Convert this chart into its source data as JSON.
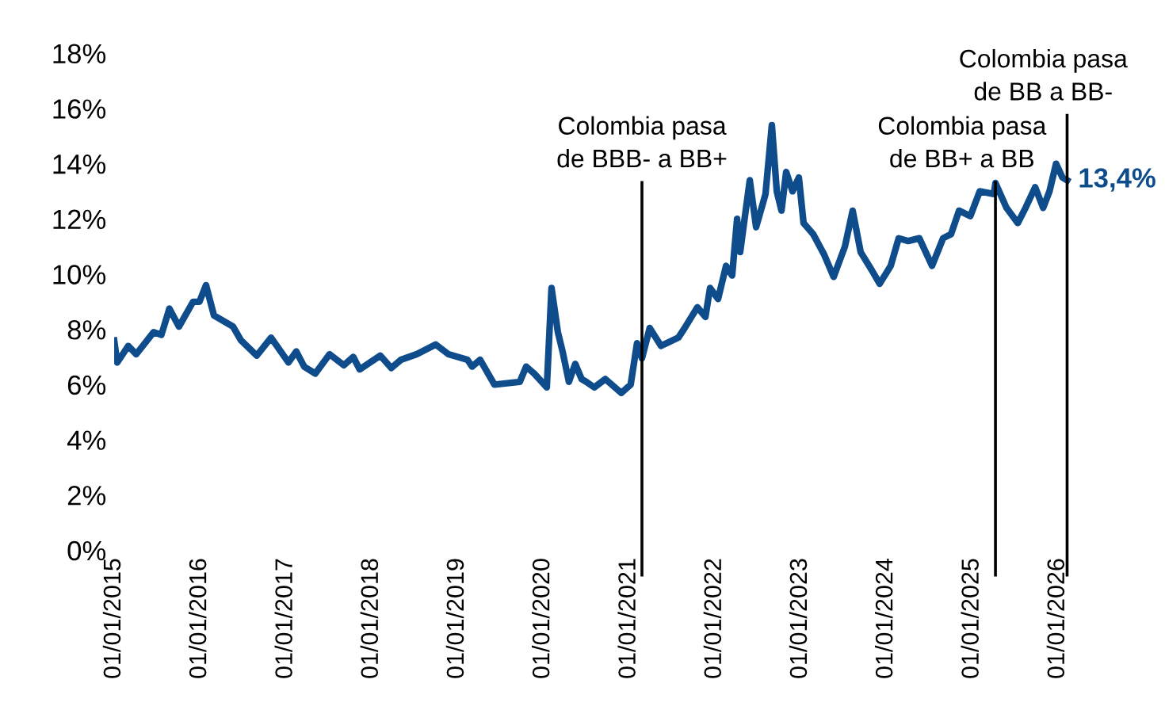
{
  "chart_data": {
    "type": "line",
    "x": [
      "2015-01-01",
      "2015-01-14",
      "2015-03-02",
      "2015-04-05",
      "2015-06-18",
      "2015-07-21",
      "2015-08-24",
      "2015-10-04",
      "2015-12-03",
      "2015-12-30",
      "2016-01-27",
      "2016-03-01",
      "2016-05-21",
      "2016-06-24",
      "2016-08-30",
      "2016-10-30",
      "2017-01-12",
      "2017-02-14",
      "2017-03-20",
      "2017-05-06",
      "2017-07-06",
      "2017-09-05",
      "2017-10-15",
      "2017-11-11",
      "2018-02-07",
      "2018-03-26",
      "2018-05-06",
      "2018-07-12",
      "2018-10-01",
      "2018-11-24",
      "2019-02-13",
      "2019-03-05",
      "2019-04-08",
      "2019-06-08",
      "2019-09-24",
      "2019-10-21",
      "2019-11-24",
      "2020-01-17",
      "2020-02-06",
      "2020-03-04",
      "2020-03-24",
      "2020-04-20",
      "2020-05-17",
      "2020-06-13",
      "2020-07-03",
      "2020-08-06",
      "2020-09-22",
      "2020-11-29",
      "2021-01-08",
      "2021-02-04",
      "2021-02-25",
      "2021-03-30",
      "2021-05-17",
      "2021-07-30",
      "2021-08-26",
      "2021-10-19",
      "2021-11-22",
      "2021-12-12",
      "2022-01-15",
      "2022-02-18",
      "2022-03-16",
      "2022-04-06",
      "2022-04-19",
      "2022-05-30",
      "2022-06-26",
      "2022-08-05",
      "2022-09-01",
      "2022-09-22",
      "2022-10-12",
      "2022-11-01",
      "2022-11-28",
      "2022-12-25",
      "2023-01-14",
      "2023-02-24",
      "2023-04-12",
      "2023-05-22",
      "2023-07-09",
      "2023-08-11",
      "2023-09-14",
      "2023-10-31",
      "2023-12-04",
      "2024-01-20",
      "2024-02-23",
      "2024-04-04",
      "2024-05-21",
      "2024-07-14",
      "2024-08-30",
      "2024-10-03",
      "2024-11-06",
      "2024-12-24",
      "2025-02-02",
      "2025-04-03",
      "2025-04-10",
      "2025-05-27",
      "2025-07-14",
      "2025-08-16",
      "2025-09-26",
      "2025-10-30",
      "2025-11-26",
      "2025-12-24",
      "2026-01-20",
      "2026-02-09"
    ],
    "series": [
      {
        "color": "#0f4c8c",
        "values": [
          7.6,
          6.8,
          7.4,
          7.1,
          7.9,
          7.8,
          8.75,
          8.1,
          9.0,
          9.0,
          9.6,
          8.5,
          8.1,
          7.6,
          7.05,
          7.7,
          6.8,
          7.2,
          6.65,
          6.4,
          7.1,
          6.7,
          7.0,
          6.55,
          7.05,
          6.6,
          6.9,
          7.1,
          7.45,
          7.1,
          6.9,
          6.65,
          6.9,
          6.0,
          6.1,
          6.65,
          6.4,
          5.9,
          9.5,
          7.9,
          7.2,
          6.1,
          6.75,
          6.2,
          6.1,
          5.9,
          6.2,
          5.7,
          6.0,
          7.5,
          6.95,
          8.05,
          7.4,
          7.7,
          8.05,
          8.8,
          8.45,
          9.5,
          9.1,
          10.3,
          9.95,
          12.0,
          10.8,
          13.4,
          11.7,
          12.9,
          15.4,
          13.0,
          12.3,
          13.7,
          13.0,
          13.5,
          11.85,
          11.45,
          10.7,
          9.9,
          11.0,
          12.3,
          10.8,
          10.15,
          9.65,
          10.3,
          11.3,
          11.2,
          11.3,
          10.3,
          11.3,
          11.45,
          12.3,
          12.1,
          13.0,
          12.9,
          13.3,
          12.4,
          11.85,
          12.4,
          13.15,
          12.4,
          13.0,
          14.0,
          13.5,
          13.4
        ],
        "value_labels": [
          null,
          null,
          null,
          null,
          null,
          null,
          null,
          null,
          null,
          null,
          null,
          null,
          null,
          null,
          null,
          null,
          null,
          null,
          null,
          null,
          null,
          null,
          null,
          null,
          null,
          null,
          null,
          null,
          null,
          null,
          null,
          null,
          null,
          null,
          null,
          null,
          null,
          null,
          null,
          null,
          null,
          null,
          null,
          null,
          null,
          null,
          null,
          null,
          null,
          null,
          null,
          null,
          null,
          null,
          null,
          null,
          null,
          null,
          null,
          null,
          null,
          null,
          null,
          null,
          null,
          null,
          null,
          null,
          null,
          null,
          null,
          null,
          null,
          null,
          null,
          null,
          null,
          null,
          null,
          null,
          null,
          null,
          null,
          null,
          null,
          null,
          null,
          null,
          null,
          null,
          null,
          null,
          null,
          null,
          null,
          null,
          null,
          null,
          null,
          null,
          null,
          "13,4%"
        ]
      }
    ],
    "xlim": [
      "2015-01-01",
      "2026-03-01"
    ],
    "xticks": [
      {
        "value": "2015-01-01",
        "label": "01/01/2015"
      },
      {
        "value": "2016-01-01",
        "label": "01/01/2016"
      },
      {
        "value": "2017-01-01",
        "label": "01/01/2017"
      },
      {
        "value": "2018-01-01",
        "label": "01/01/2018"
      },
      {
        "value": "2019-01-01",
        "label": "01/01/2019"
      },
      {
        "value": "2020-01-01",
        "label": "01/01/2020"
      },
      {
        "value": "2021-01-01",
        "label": "01/01/2021"
      },
      {
        "value": "2022-01-01",
        "label": "01/01/2022"
      },
      {
        "value": "2023-01-01",
        "label": "01/01/2023"
      },
      {
        "value": "2024-01-01",
        "label": "01/01/2024"
      },
      {
        "value": "2025-01-01",
        "label": "01/01/2025"
      },
      {
        "value": "2026-01-01",
        "label": "01/01/2026"
      }
    ],
    "ylim": [
      0,
      18
    ],
    "yticks": [
      {
        "value": 0,
        "label": "0%"
      },
      {
        "value": 2,
        "label": "2%"
      },
      {
        "value": 4,
        "label": "4%"
      },
      {
        "value": 6,
        "label": "6%"
      },
      {
        "value": 8,
        "label": "8%"
      },
      {
        "value": 10,
        "label": "10%"
      },
      {
        "value": 12,
        "label": "12%"
      },
      {
        "value": 14,
        "label": "14%"
      },
      {
        "value": 16,
        "label": "16%"
      },
      {
        "value": 18,
        "label": "18%"
      }
    ],
    "ref_lines": [
      {
        "axis": "x",
        "value": "2021-02-25",
        "label": "Colombia pasa\nde BBB- a BB+",
        "color": "#000000"
      },
      {
        "axis": "x",
        "value": "2025-04-10",
        "label": "Colombia pasa\nde BB+ a BB",
        "color": "#000000"
      },
      {
        "axis": "x",
        "value": "2026-02-09",
        "label": "Colombia pasa\nde BB a BB-",
        "color": "#000000"
      }
    ],
    "grid": false,
    "legend": false,
    "marker": "none",
    "line_style": "solid"
  }
}
